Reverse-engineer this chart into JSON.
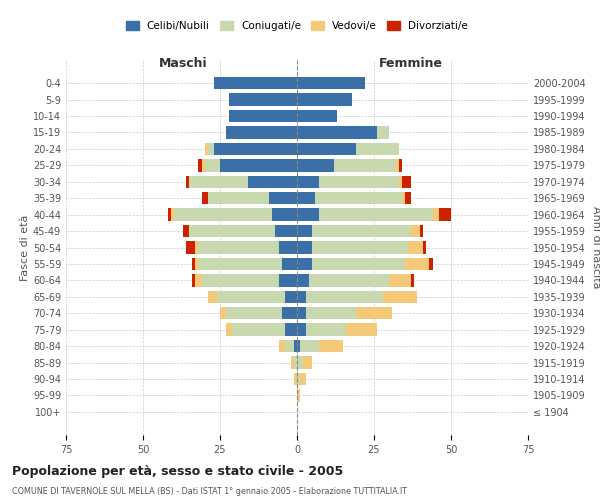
{
  "age_groups": [
    "100+",
    "95-99",
    "90-94",
    "85-89",
    "80-84",
    "75-79",
    "70-74",
    "65-69",
    "60-64",
    "55-59",
    "50-54",
    "45-49",
    "40-44",
    "35-39",
    "30-34",
    "25-29",
    "20-24",
    "15-19",
    "10-14",
    "5-9",
    "0-4"
  ],
  "birth_years": [
    "≤ 1904",
    "1905-1909",
    "1910-1914",
    "1915-1919",
    "1920-1924",
    "1925-1929",
    "1930-1934",
    "1935-1939",
    "1940-1944",
    "1945-1949",
    "1950-1954",
    "1955-1959",
    "1960-1964",
    "1965-1969",
    "1970-1974",
    "1975-1979",
    "1980-1984",
    "1985-1989",
    "1990-1994",
    "1995-1999",
    "2000-2004"
  ],
  "colors": {
    "celibi": "#3A6FA8",
    "coniugati": "#C8D9B0",
    "vedovi": "#F5C97A",
    "divorziati": "#CC2200"
  },
  "maschi": {
    "celibi": [
      0,
      0,
      0,
      0,
      1,
      4,
      5,
      4,
      6,
      5,
      6,
      7,
      8,
      9,
      16,
      25,
      27,
      23,
      22,
      22,
      27
    ],
    "coniugati": [
      0,
      0,
      0,
      1,
      3,
      17,
      18,
      22,
      25,
      27,
      26,
      28,
      32,
      20,
      19,
      5,
      2,
      0,
      0,
      0,
      0
    ],
    "vedovi": [
      0,
      0,
      1,
      1,
      2,
      2,
      2,
      3,
      2,
      1,
      1,
      0,
      1,
      0,
      0,
      1,
      1,
      0,
      0,
      0,
      0
    ],
    "divorziati": [
      0,
      0,
      0,
      0,
      0,
      0,
      0,
      0,
      1,
      1,
      3,
      2,
      1,
      2,
      1,
      1,
      0,
      0,
      0,
      0,
      0
    ]
  },
  "femmine": {
    "celibi": [
      0,
      0,
      0,
      0,
      1,
      3,
      3,
      3,
      4,
      5,
      5,
      5,
      7,
      6,
      7,
      12,
      19,
      26,
      13,
      18,
      22
    ],
    "coniugati": [
      0,
      0,
      1,
      2,
      6,
      13,
      16,
      25,
      26,
      30,
      31,
      32,
      37,
      28,
      26,
      20,
      14,
      4,
      0,
      0,
      0
    ],
    "vedovi": [
      0,
      1,
      2,
      3,
      8,
      10,
      12,
      11,
      7,
      8,
      5,
      3,
      2,
      1,
      1,
      1,
      0,
      0,
      0,
      0,
      0
    ],
    "divorziati": [
      0,
      0,
      0,
      0,
      0,
      0,
      0,
      0,
      1,
      1,
      1,
      1,
      4,
      2,
      3,
      1,
      0,
      0,
      0,
      0,
      0
    ]
  },
  "xlim": 75,
  "title": "Popolazione per età, sesso e stato civile - 2005",
  "subtitle": "COMUNE DI TAVERNOLE SUL MELLA (BS) - Dati ISTAT 1° gennaio 2005 - Elaborazione TUTTITALIA.IT",
  "ylabel_left": "Fasce di età",
  "ylabel_right": "Anni di nascita",
  "xlabel_left": "Maschi",
  "xlabel_right": "Femmine",
  "legend_labels": [
    "Celibi/Nubili",
    "Coniugati/e",
    "Vedovi/e",
    "Divorziati/e"
  ],
  "bg_color": "#FFFFFF",
  "grid_color": "#CCCCCC"
}
